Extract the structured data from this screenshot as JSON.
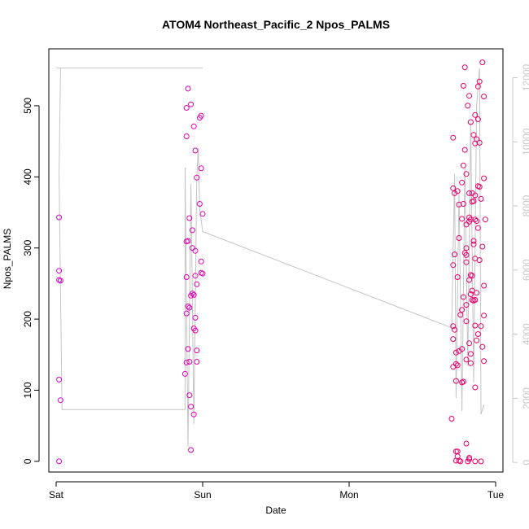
{
  "chart_data": {
    "type": "scatter",
    "title": "ATOM4 Northeast_Pacific_2 Npos_PALMS",
    "xlabel": "Date",
    "ylabel": "Npos_PALMS",
    "x_ticks": [
      {
        "label": "Sat",
        "value": 0
      },
      {
        "label": "Sun",
        "value": 1
      },
      {
        "label": "Mon",
        "value": 2
      },
      {
        "label": "Tue",
        "value": 3
      }
    ],
    "y_ticks": [
      0,
      100,
      200,
      300,
      400,
      500
    ],
    "y2_ticks": [
      0,
      2000,
      4000,
      6000,
      8000,
      10000,
      12000
    ],
    "xlim": [
      -0.05,
      3.05
    ],
    "ylim": [
      -15,
      580
    ],
    "y2lim": [
      -300,
      12900
    ],
    "points": [
      {
        "x": 0.02,
        "y": 343
      },
      {
        "x": 0.02,
        "y": 268
      },
      {
        "x": 0.02,
        "y": 255
      },
      {
        "x": 0.03,
        "y": 254
      },
      {
        "x": 0.02,
        "y": 115
      },
      {
        "x": 0.03,
        "y": 86
      },
      {
        "x": 0.02,
        "y": 0
      },
      {
        "x": 0.89,
        "y": 497
      },
      {
        "x": 0.9,
        "y": 524
      },
      {
        "x": 0.92,
        "y": 502
      },
      {
        "x": 0.89,
        "y": 457
      },
      {
        "x": 0.94,
        "y": 471
      },
      {
        "x": 0.95,
        "y": 437
      },
      {
        "x": 0.98,
        "y": 483
      },
      {
        "x": 0.99,
        "y": 486
      },
      {
        "x": 0.99,
        "y": 412
      },
      {
        "x": 0.96,
        "y": 399
      },
      {
        "x": 0.98,
        "y": 362
      },
      {
        "x": 1.0,
        "y": 348
      },
      {
        "x": 0.91,
        "y": 342
      },
      {
        "x": 0.93,
        "y": 325
      },
      {
        "x": 0.89,
        "y": 309
      },
      {
        "x": 0.9,
        "y": 310
      },
      {
        "x": 0.93,
        "y": 300
      },
      {
        "x": 0.95,
        "y": 296
      },
      {
        "x": 0.99,
        "y": 281
      },
      {
        "x": 0.99,
        "y": 265
      },
      {
        "x": 1.0,
        "y": 264
      },
      {
        "x": 0.89,
        "y": 259
      },
      {
        "x": 0.95,
        "y": 261
      },
      {
        "x": 0.96,
        "y": 249
      },
      {
        "x": 0.93,
        "y": 236
      },
      {
        "x": 0.92,
        "y": 233
      },
      {
        "x": 0.94,
        "y": 234
      },
      {
        "x": 0.9,
        "y": 218
      },
      {
        "x": 0.91,
        "y": 216
      },
      {
        "x": 0.89,
        "y": 208
      },
      {
        "x": 0.95,
        "y": 202
      },
      {
        "x": 0.94,
        "y": 187
      },
      {
        "x": 0.95,
        "y": 184
      },
      {
        "x": 0.9,
        "y": 158
      },
      {
        "x": 0.96,
        "y": 156
      },
      {
        "x": 0.89,
        "y": 139
      },
      {
        "x": 0.91,
        "y": 140
      },
      {
        "x": 0.96,
        "y": 140
      },
      {
        "x": 0.88,
        "y": 123
      },
      {
        "x": 0.91,
        "y": 93
      },
      {
        "x": 0.92,
        "y": 77
      },
      {
        "x": 0.94,
        "y": 66
      },
      {
        "x": 0.92,
        "y": 16
      },
      {
        "x": 2.91,
        "y": 561
      },
      {
        "x": 2.79,
        "y": 554
      },
      {
        "x": 2.89,
        "y": 534
      },
      {
        "x": 2.88,
        "y": 527
      },
      {
        "x": 2.78,
        "y": 528
      },
      {
        "x": 2.92,
        "y": 513
      },
      {
        "x": 2.82,
        "y": 514
      },
      {
        "x": 2.81,
        "y": 500
      },
      {
        "x": 2.86,
        "y": 487
      },
      {
        "x": 2.88,
        "y": 481
      },
      {
        "x": 2.83,
        "y": 477
      },
      {
        "x": 2.85,
        "y": 459
      },
      {
        "x": 2.71,
        "y": 455
      },
      {
        "x": 2.87,
        "y": 453
      },
      {
        "x": 2.89,
        "y": 448
      },
      {
        "x": 2.86,
        "y": 447
      },
      {
        "x": 2.79,
        "y": 438
      },
      {
        "x": 2.78,
        "y": 416
      },
      {
        "x": 2.8,
        "y": 404
      },
      {
        "x": 2.92,
        "y": 398
      },
      {
        "x": 2.77,
        "y": 392
      },
      {
        "x": 2.71,
        "y": 384
      },
      {
        "x": 2.74,
        "y": 380
      },
      {
        "x": 2.72,
        "y": 377
      },
      {
        "x": 2.88,
        "y": 387
      },
      {
        "x": 2.89,
        "y": 386
      },
      {
        "x": 2.82,
        "y": 377
      },
      {
        "x": 2.84,
        "y": 377
      },
      {
        "x": 2.86,
        "y": 374
      },
      {
        "x": 2.84,
        "y": 365
      },
      {
        "x": 2.9,
        "y": 369
      },
      {
        "x": 2.85,
        "y": 366
      },
      {
        "x": 2.78,
        "y": 362
      },
      {
        "x": 2.75,
        "y": 361
      },
      {
        "x": 2.82,
        "y": 343
      },
      {
        "x": 2.77,
        "y": 341
      },
      {
        "x": 2.82,
        "y": 337
      },
      {
        "x": 2.83,
        "y": 340
      },
      {
        "x": 2.86,
        "y": 340
      },
      {
        "x": 2.87,
        "y": 338
      },
      {
        "x": 2.93,
        "y": 340
      },
      {
        "x": 2.8,
        "y": 333
      },
      {
        "x": 2.88,
        "y": 328
      },
      {
        "x": 2.75,
        "y": 314
      },
      {
        "x": 2.85,
        "y": 310
      },
      {
        "x": 2.85,
        "y": 305
      },
      {
        "x": 2.8,
        "y": 300
      },
      {
        "x": 2.91,
        "y": 302
      },
      {
        "x": 2.72,
        "y": 291
      },
      {
        "x": 2.79,
        "y": 293
      },
      {
        "x": 2.8,
        "y": 290
      },
      {
        "x": 2.86,
        "y": 285
      },
      {
        "x": 2.89,
        "y": 283
      },
      {
        "x": 2.8,
        "y": 280
      },
      {
        "x": 2.71,
        "y": 276
      },
      {
        "x": 2.83,
        "y": 262
      },
      {
        "x": 2.74,
        "y": 259
      },
      {
        "x": 2.84,
        "y": 261
      },
      {
        "x": 2.82,
        "y": 255
      },
      {
        "x": 2.92,
        "y": 247
      },
      {
        "x": 2.84,
        "y": 240
      },
      {
        "x": 2.87,
        "y": 237
      },
      {
        "x": 2.78,
        "y": 231
      },
      {
        "x": 2.83,
        "y": 235
      },
      {
        "x": 2.85,
        "y": 226
      },
      {
        "x": 2.86,
        "y": 227
      },
      {
        "x": 2.84,
        "y": 227
      },
      {
        "x": 2.8,
        "y": 220
      },
      {
        "x": 2.77,
        "y": 213
      },
      {
        "x": 2.76,
        "y": 206
      },
      {
        "x": 2.92,
        "y": 205
      },
      {
        "x": 2.8,
        "y": 197
      },
      {
        "x": 2.86,
        "y": 191
      },
      {
        "x": 2.71,
        "y": 190
      },
      {
        "x": 2.72,
        "y": 185
      },
      {
        "x": 2.9,
        "y": 190
      },
      {
        "x": 2.88,
        "y": 179
      },
      {
        "x": 2.71,
        "y": 172
      },
      {
        "x": 2.87,
        "y": 170
      },
      {
        "x": 2.82,
        "y": 166
      },
      {
        "x": 2.91,
        "y": 161
      },
      {
        "x": 2.77,
        "y": 158
      },
      {
        "x": 2.75,
        "y": 155
      },
      {
        "x": 2.73,
        "y": 153
      },
      {
        "x": 2.83,
        "y": 151
      },
      {
        "x": 2.8,
        "y": 143
      },
      {
        "x": 2.83,
        "y": 138
      },
      {
        "x": 2.73,
        "y": 137
      },
      {
        "x": 2.74,
        "y": 135
      },
      {
        "x": 2.71,
        "y": 133
      },
      {
        "x": 2.92,
        "y": 141
      },
      {
        "x": 2.78,
        "y": 112
      },
      {
        "x": 2.73,
        "y": 113
      },
      {
        "x": 2.77,
        "y": 111
      },
      {
        "x": 2.86,
        "y": 104
      },
      {
        "x": 2.7,
        "y": 60
      },
      {
        "x": 2.8,
        "y": 25
      },
      {
        "x": 2.73,
        "y": 14
      },
      {
        "x": 2.74,
        "y": 14
      },
      {
        "x": 2.74,
        "y": 7
      },
      {
        "x": 2.82,
        "y": 5
      },
      {
        "x": 2.82,
        "y": 3
      },
      {
        "x": 2.73,
        "y": 1
      },
      {
        "x": 2.75,
        "y": 1
      },
      {
        "x": 2.76,
        "y": 0
      },
      {
        "x": 2.81,
        "y": 0
      },
      {
        "x": 2.86,
        "y": 0
      },
      {
        "x": 2.9,
        "y": 0
      }
    ],
    "line2": [
      {
        "x": 0.0,
        "y": 12300
      },
      {
        "x": 1.0,
        "y": 12300
      },
      {
        "x": 0.97,
        "y": 12300
      },
      {
        "x": 0.03,
        "y": 12300
      },
      {
        "x": 0.02,
        "y": 9000
      },
      {
        "x": 0.04,
        "y": 1650
      },
      {
        "x": 0.88,
        "y": 1650
      },
      {
        "x": 0.88,
        "y": 9200
      },
      {
        "x": 0.9,
        "y": 500
      },
      {
        "x": 0.92,
        "y": 8700
      },
      {
        "x": 0.94,
        "y": 1200
      },
      {
        "x": 0.96,
        "y": 8900
      },
      {
        "x": 0.97,
        "y": 9800
      },
      {
        "x": 0.98,
        "y": 7900
      },
      {
        "x": 1.0,
        "y": 7200
      },
      {
        "x": 2.7,
        "y": 4200
      },
      {
        "x": 2.72,
        "y": 9000
      },
      {
        "x": 2.73,
        "y": 2000
      },
      {
        "x": 2.75,
        "y": 8500
      },
      {
        "x": 2.77,
        "y": 1600
      },
      {
        "x": 2.79,
        "y": 9200
      },
      {
        "x": 2.81,
        "y": 3000
      },
      {
        "x": 2.83,
        "y": 10600
      },
      {
        "x": 2.85,
        "y": 2500
      },
      {
        "x": 2.87,
        "y": 11100
      },
      {
        "x": 2.89,
        "y": 12300
      },
      {
        "x": 2.9,
        "y": 1500
      },
      {
        "x": 2.92,
        "y": 1800
      }
    ]
  }
}
